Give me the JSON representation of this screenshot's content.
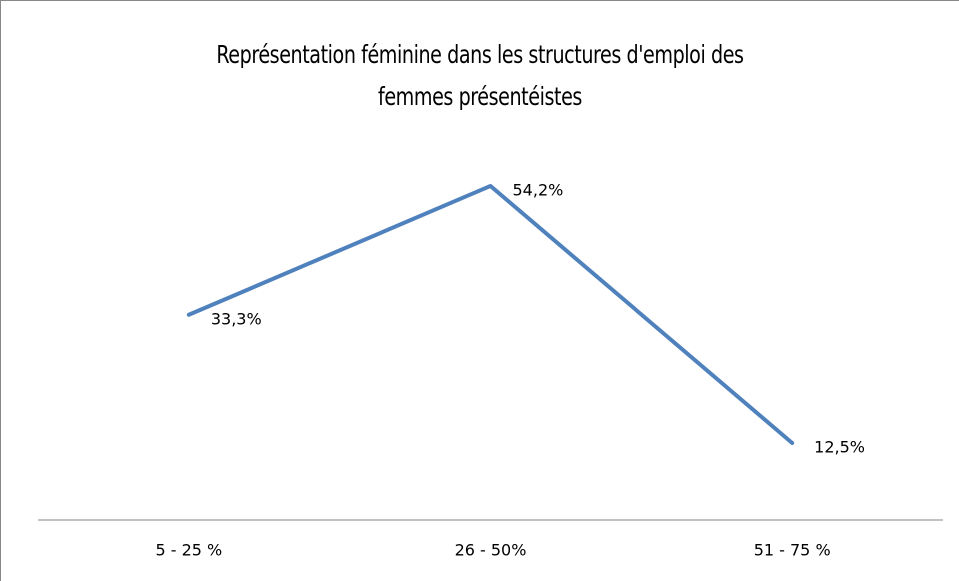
{
  "chart_data": {
    "type": "line",
    "title": "Représentation féminine dans les structures d'emploi des femmes présentéistes",
    "categories": [
      "5 - 25 %",
      "26 - 50%",
      "51 - 75 %"
    ],
    "series": [
      {
        "name": "Représentation féminine",
        "color": "#4f81bd",
        "values": [
          33.3,
          54.2,
          12.5
        ],
        "value_labels": [
          "33,3%",
          "54,2%",
          "12,5%"
        ]
      }
    ]
  }
}
